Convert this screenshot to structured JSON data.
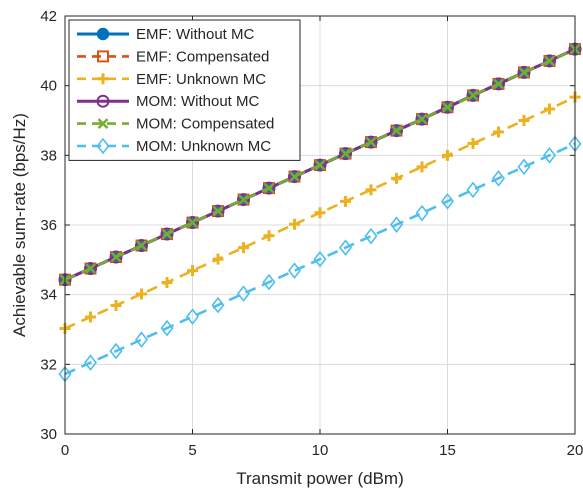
{
  "chart_data": {
    "type": "line",
    "title": "",
    "xlabel": "Transmit power (dBm)",
    "ylabel": "Achievable sum-rate (bps/Hz)",
    "xlim": [
      0,
      20
    ],
    "ylim": [
      30,
      42
    ],
    "xticks": [
      0,
      5,
      10,
      15,
      20
    ],
    "yticks": [
      30,
      32,
      34,
      36,
      38,
      40,
      42
    ],
    "grid": true,
    "legend_position": "top-left",
    "x": [
      0,
      1,
      2,
      3,
      4,
      5,
      6,
      7,
      8,
      9,
      10,
      11,
      12,
      13,
      14,
      15,
      16,
      17,
      18,
      19,
      20
    ],
    "series": [
      {
        "name": "EMF: Without MC",
        "color": "#0072BD",
        "marker": "circle-filled",
        "line": "solid",
        "values": [
          34.43,
          34.75,
          35.08,
          35.41,
          35.74,
          36.07,
          36.4,
          36.73,
          37.06,
          37.39,
          37.72,
          38.05,
          38.38,
          38.71,
          39.04,
          39.38,
          39.72,
          40.05,
          40.38,
          40.71,
          41.05
        ]
      },
      {
        "name": "EMF: Compensated",
        "color": "#D95319",
        "marker": "square",
        "line": "dashed",
        "values": [
          34.43,
          34.75,
          35.08,
          35.41,
          35.74,
          36.07,
          36.4,
          36.73,
          37.06,
          37.39,
          37.72,
          38.05,
          38.38,
          38.71,
          39.04,
          39.38,
          39.72,
          40.05,
          40.38,
          40.71,
          41.05
        ]
      },
      {
        "name": "EMF: Unknown MC",
        "color": "#EDB120",
        "marker": "plus",
        "line": "dashed",
        "values": [
          33.03,
          33.36,
          33.69,
          34.02,
          34.35,
          34.69,
          35.02,
          35.35,
          35.69,
          36.02,
          36.35,
          36.68,
          37.01,
          37.34,
          37.67,
          38.0,
          38.34,
          38.67,
          39.0,
          39.33,
          39.67
        ]
      },
      {
        "name": "MOM: Without MC",
        "color": "#7E2F8E",
        "marker": "circle-open",
        "line": "solid",
        "values": [
          34.43,
          34.75,
          35.08,
          35.41,
          35.74,
          36.07,
          36.4,
          36.73,
          37.06,
          37.39,
          37.72,
          38.05,
          38.38,
          38.71,
          39.04,
          39.38,
          39.72,
          40.05,
          40.38,
          40.71,
          41.05
        ]
      },
      {
        "name": "MOM: Compensated",
        "color": "#77AC30",
        "marker": "x",
        "line": "dashed",
        "values": [
          34.43,
          34.75,
          35.08,
          35.41,
          35.74,
          36.07,
          36.4,
          36.73,
          37.06,
          37.39,
          37.72,
          38.05,
          38.38,
          38.71,
          39.04,
          39.38,
          39.72,
          40.05,
          40.38,
          40.71,
          41.05
        ]
      },
      {
        "name": "MOM: Unknown MC",
        "color": "#4DBEEE",
        "marker": "diamond",
        "line": "dashed",
        "values": [
          31.72,
          32.05,
          32.38,
          32.71,
          33.04,
          33.37,
          33.7,
          34.03,
          34.36,
          34.69,
          35.02,
          35.35,
          35.68,
          36.01,
          36.34,
          36.68,
          37.01,
          37.34,
          37.67,
          38.0,
          38.33
        ]
      }
    ]
  }
}
